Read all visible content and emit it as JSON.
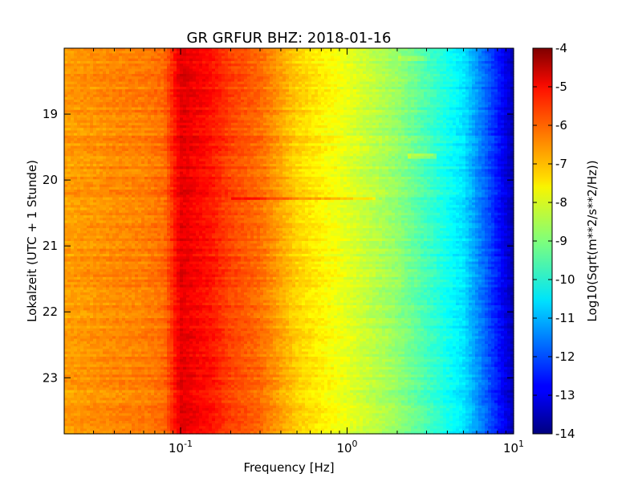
{
  "chart_data": {
    "type": "heatmap",
    "title": "GR GRFUR BHZ: 2018-01-16",
    "xlabel": "Frequency [Hz]",
    "ylabel": "Lokalzeit (UTC + 1 Stunde)",
    "colorbar_label": "Log10(Sqrt(m**2/s**2/Hz))",
    "x_scale": "log",
    "x_range": [
      0.02,
      10
    ],
    "x_ticks": [
      {
        "value": 0.1,
        "base": "10",
        "exp": "-1"
      },
      {
        "value": 1,
        "base": "10",
        "exp": "0"
      },
      {
        "value": 10,
        "base": "10",
        "exp": "1"
      }
    ],
    "y_range": [
      18.0,
      23.85
    ],
    "y_inverted": true,
    "y_ticks": [
      "19",
      "20",
      "21",
      "22",
      "23"
    ],
    "colorbar_range": [
      -14,
      -4
    ],
    "colorbar_ticks": [
      "-4",
      "-5",
      "-6",
      "-7",
      "-8",
      "-9",
      "-10",
      "-11",
      "-12",
      "-13",
      "-14"
    ],
    "colormap": "jet",
    "frequency_profile": {
      "frequencies": [
        0.02,
        0.04,
        0.06,
        0.08,
        0.1,
        0.15,
        0.2,
        0.3,
        0.5,
        1,
        2,
        5,
        8,
        10
      ],
      "values": [
        -6.8,
        -6.6,
        -6.5,
        -6.3,
        -5.0,
        -5.4,
        -5.9,
        -6.3,
        -7.3,
        -8.0,
        -8.8,
        -10.5,
        -12.5,
        -13.5
      ]
    },
    "features": [
      {
        "frequency_range": [
          0.2,
          1.5
        ],
        "time": 20.28,
        "delta": 0.9
      },
      {
        "frequency_range": [
          2.3,
          3.5
        ],
        "time": 19.63,
        "delta": 0.8
      },
      {
        "frequency_range": [
          2.0,
          3.0
        ],
        "time": 18.15,
        "delta": 0.4
      }
    ]
  }
}
